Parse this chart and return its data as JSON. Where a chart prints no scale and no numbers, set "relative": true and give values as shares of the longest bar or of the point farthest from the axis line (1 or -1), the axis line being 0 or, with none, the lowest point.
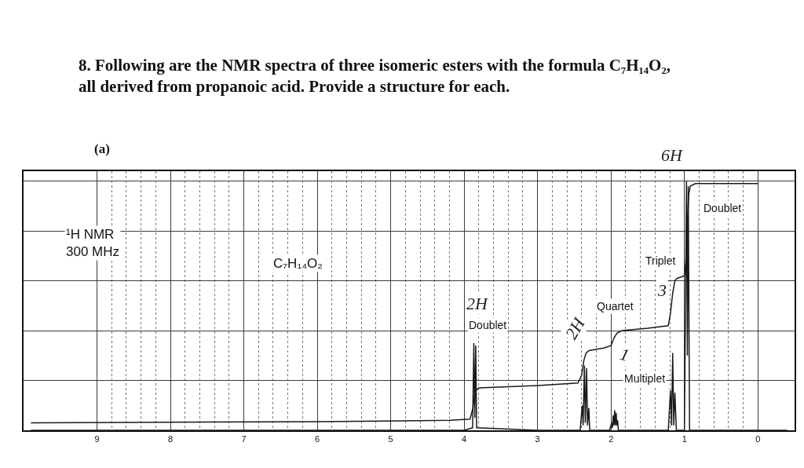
{
  "chart_data": {
    "type": "line",
    "relative": true,
    "grid": true,
    "title": "8. Following are the NMR spectra of three isomeric esters with the formula C₇H₁₄O₂, all derived from propanoic acid. Provide a structure for each.",
    "subtitle": "(a)",
    "xlim": [
      10,
      -0.5
    ],
    "xticks": [
      9,
      8,
      7,
      6,
      5,
      4,
      3,
      2,
      1,
      0
    ],
    "annotations": [
      "¹H NMR\n300 MHz",
      "C₇H₁₄O₂",
      "2H",
      "Doublet",
      "2H",
      "Quartet",
      "1",
      "Multiplet",
      "3",
      "Triplet",
      "Doublet",
      "6H"
    ],
    "series": [
      {
        "color": "#1a1a1a",
        "x": [
          9.9,
          4.0,
          3.885,
          3.868,
          3.855,
          3.842,
          3.83,
          3.0,
          2.42,
          2.392,
          2.38,
          2.362,
          2.35,
          2.332,
          2.32,
          2.302,
          2.29,
          2.02,
          1.99,
          1.98,
          1.97,
          1.96,
          1.95,
          1.94,
          1.93,
          1.92,
          1.91,
          1.9,
          1.22,
          1.19,
          1.175,
          1.16,
          1.145,
          1.13,
          1.11,
          1.0,
          0.972,
          0.96,
          0.948,
          0.93,
          -0.4
        ],
        "values": [
          0,
          0,
          0.01,
          0.35,
          0.05,
          0.34,
          0.01,
          0,
          0,
          0.1,
          0.02,
          0.26,
          0.03,
          0.25,
          0.02,
          0.09,
          0,
          0,
          0.03,
          0.01,
          0.06,
          0.02,
          0.08,
          0.02,
          0.07,
          0.02,
          0.04,
          0,
          0,
          0.16,
          0.02,
          0.31,
          0.02,
          0.15,
          0,
          0,
          1.0,
          0.3,
          0.98,
          0,
          0
        ]
      },
      {
        "color": "#1a1a1a",
        "x": [
          9.9,
          6.0,
          4.2,
          3.92,
          3.88,
          3.86,
          3.84,
          3.8,
          3.0,
          2.45,
          2.4,
          2.37,
          2.34,
          2.3,
          2.1,
          2.0,
          1.96,
          1.92,
          1.85,
          1.5,
          1.22,
          1.19,
          1.16,
          1.13,
          1.1,
          1.0,
          0.98,
          0.96,
          0.94,
          0.92,
          0.85,
          0.6,
          0.0
        ],
        "values": [
          0.03,
          0.035,
          0.04,
          0.045,
          0.09,
          0.14,
          0.16,
          0.17,
          0.18,
          0.19,
          0.22,
          0.28,
          0.31,
          0.32,
          0.33,
          0.34,
          0.37,
          0.39,
          0.4,
          0.41,
          0.42,
          0.47,
          0.55,
          0.6,
          0.61,
          0.62,
          0.68,
          0.84,
          0.95,
          0.98,
          0.99,
          0.99,
          0.99
        ]
      }
    ]
  }
}
